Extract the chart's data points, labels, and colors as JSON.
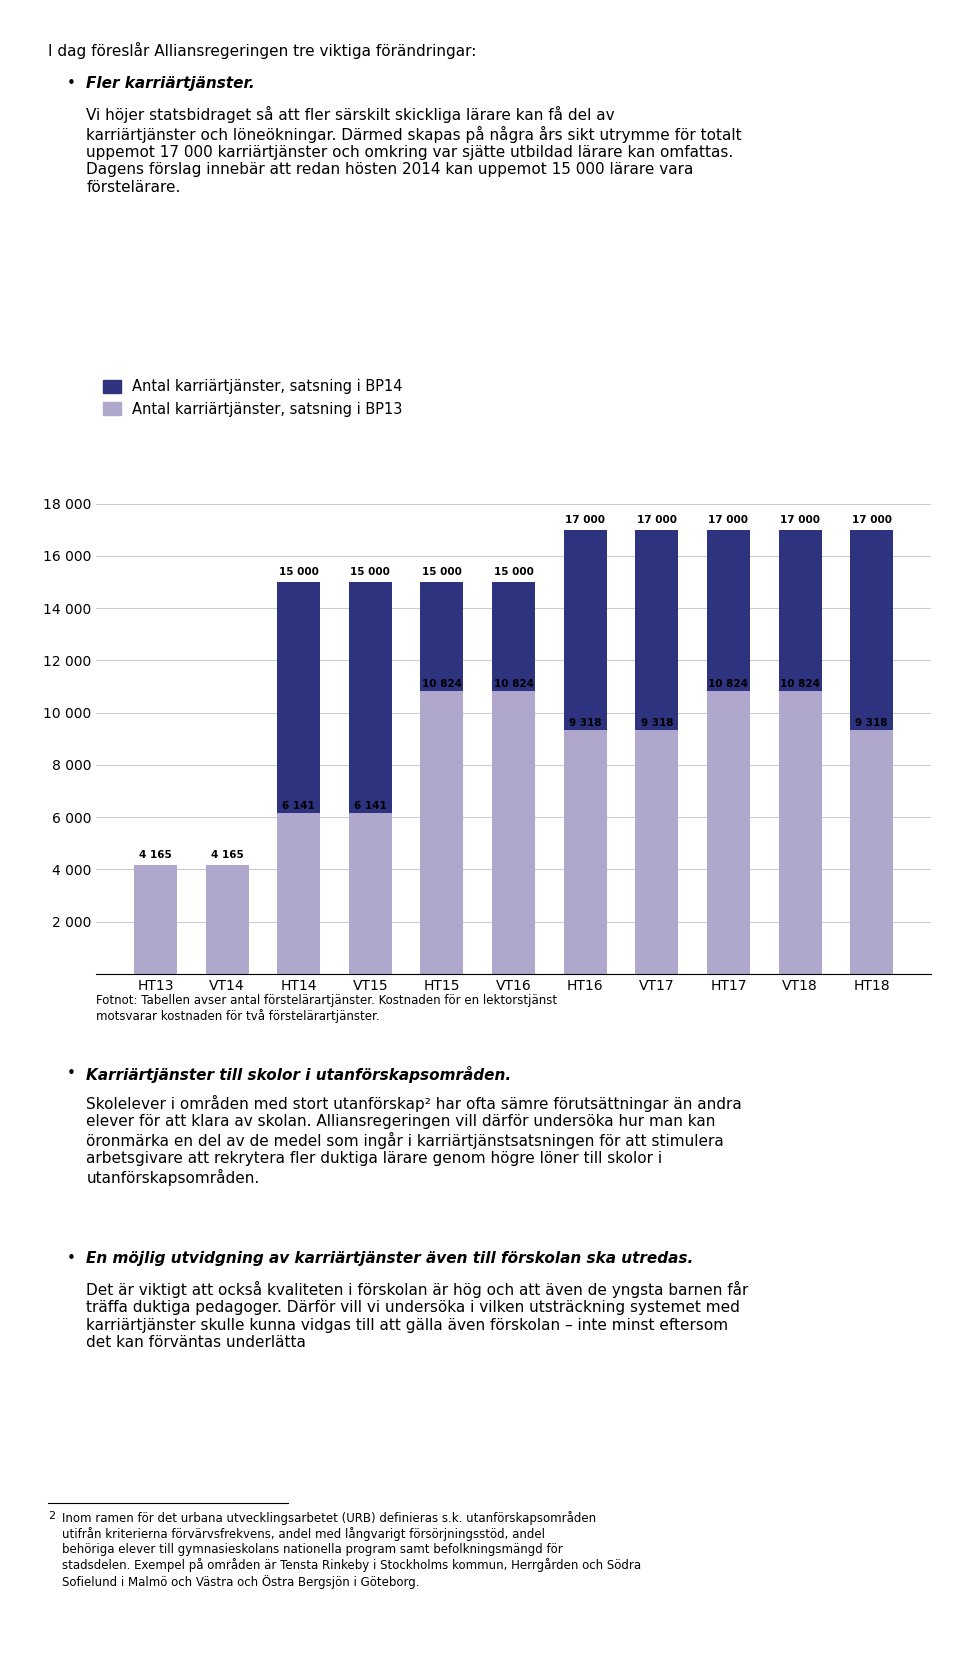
{
  "categories": [
    "HT13",
    "VT14",
    "HT14",
    "VT15",
    "HT15",
    "VT16",
    "HT16",
    "VT17",
    "HT17",
    "VT18",
    "HT18"
  ],
  "bp13_values": [
    4165,
    4165,
    6141,
    6141,
    10824,
    10824,
    9318,
    9318,
    10824,
    10824,
    9318
  ],
  "total_values": [
    4165,
    4165,
    15000,
    15000,
    15000,
    15000,
    17000,
    17000,
    17000,
    17000,
    17000
  ],
  "color_bp13": "#b0a8cc",
  "color_bp14": "#2e3380",
  "legend_bp14": "Antal karriärtjänster, satsning i BP14",
  "legend_bp13": "Antal karriärtjänster, satsning i BP13",
  "ylim": [
    0,
    18000
  ],
  "yticks": [
    0,
    2000,
    4000,
    6000,
    8000,
    10000,
    12000,
    14000,
    16000,
    18000
  ],
  "title_text": "I dag föreslår Alliansregeringen tre viktiga förändringar:",
  "header_lines": [
    "I dag föreslår Alliansregeringen tre viktiga förändringar:"
  ],
  "body1_bold": "Fler karriärtjänster.",
  "body1_text": " Vi höjer statsbidraget så att fler särskilt skickliga lärare kan få del av karriärtjänster och löneökningar. Därmed skapas på några års sikt utrymme för totalt uppemot 17 000 karriärtjänster och omkring var sjätte utbildad lärare kan omfattas. Dagens förslag innebär att redan hösten 2014 kan uppemot 15 000 lärare vara förstelärare.",
  "footnote": "Fotnot: Tabellen avser antal förstelärartjänster. Kostnaden för en lektorstjänst\nmotsvarar kostnaden för två förstelärartjänster.",
  "body2_bold": "Karriärtjänster till skolor i utanförskapsområden.",
  "body2_text": " Skolelever i områden med stort utanförskap² har ofta sämre förutsättningar än andra elever för att klara av skolan. Alliansregeringen vill därför undersöka hur man kan öronmärka en del av de medel som ingår i karriärtjänstsatsningen för att stimulera arbetsgivare att rekrytera fler duktiga lärare genom högre löner till skolor i utanförskapsområden.",
  "body3_bold": "En möjlig utvidgning av karriärtjänster även till förskolan ska utredas.",
  "body3_text": " Det är viktigt att också kvaliteten i förskolan är hög och att även de yngsta barnen får träffa duktiga pedagoger. Därför vill vi undersöka i vilken utsträckning systemet med karriärtjänster skulle kunna vidgas till att gälla även förskolan – inte minst eftersom det kan förväntas underlätta",
  "footnote2_num": "2",
  "footnote2_text": " Inom ramen för det urbana utvecklingsarbetet (URB) definieras s.k. utanförskapsområden utifrån kriterierna förvärvsfrekvens, andel med långvarigt försörjningsstöd, andel behöriga elever till gymnasieskolans nationella program samt befolkningsmängd för stadsdelen. Exempel på områden är Tensta Rinkeby i Stockholms kommun, Herrgården och Södra Sofielund i Malmö och Västra och Östra Bergsjön i Göteborg.",
  "background_color": "#ffffff",
  "bar_width": 0.6
}
